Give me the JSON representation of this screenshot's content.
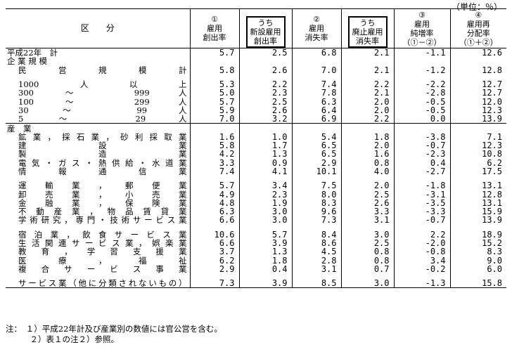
{
  "unit": "（単位：％）",
  "header": {
    "col0": "区　　分",
    "col1": [
      "①",
      "雇用",
      "創出率"
    ],
    "col2": [
      "うち",
      "新設雇用",
      "創出率"
    ],
    "col3": [
      "②",
      "雇用",
      "消失率"
    ],
    "col4": [
      "うち",
      "廃止雇用",
      "消失率"
    ],
    "col5": [
      "③",
      "雇用",
      "純増率",
      "（①－②）"
    ],
    "col6": [
      "④",
      "雇用再",
      "分配率",
      "（①＋②）"
    ]
  },
  "rows": [
    {
      "label": "平成22年　計",
      "v": [
        "5.7",
        "2.5",
        "6.8",
        "2.1",
        "-1.1",
        "12.6"
      ]
    },
    {
      "label": "企 業 規 模",
      "v": null
    },
    {
      "label": "民営規模計",
      "indent": true,
      "v": [
        "5.8",
        "2.6",
        "7.0",
        "2.1",
        "-1.2",
        "12.8"
      ]
    },
    {
      "blank": true
    },
    {
      "label": "1000人以上",
      "indent": true,
      "v": [
        "5.3",
        "2.2",
        "7.4",
        "2.2",
        "-2.2",
        "12.7"
      ]
    },
    {
      "label": "300 〜 999人",
      "indent": true,
      "v": [
        "5.0",
        "2.3",
        "7.8",
        "2.1",
        "-2.8",
        "12.7"
      ]
    },
    {
      "label": "100 〜 299人",
      "indent": true,
      "v": [
        "5.7",
        "2.5",
        "6.3",
        "2.0",
        "-0.5",
        "12.0"
      ]
    },
    {
      "label": "30 〜 99人",
      "indent": true,
      "v": [
        "5.9",
        "2.6",
        "6.4",
        "2.0",
        "-0.5",
        "12.3"
      ]
    },
    {
      "label": "5 〜 29人",
      "indent": true,
      "v": [
        "7.0",
        "3.2",
        "6.9",
        "2.2",
        "0.0",
        "13.9"
      ]
    },
    {
      "label": "産　業",
      "v": null,
      "sep": true
    },
    {
      "label": "鉱業，採石業，砂利採取業",
      "indent": true,
      "v": [
        "1.6",
        "1.0",
        "5.4",
        "1.8",
        "-3.8",
        "7.1"
      ]
    },
    {
      "label": "建設業",
      "indent": true,
      "v": [
        "5.8",
        "1.7",
        "6.5",
        "2.0",
        "-0.7",
        "12.3"
      ]
    },
    {
      "label": "製造業",
      "indent": true,
      "v": [
        "4.2",
        "1.3",
        "6.5",
        "1.6",
        "-2.3",
        "10.8"
      ]
    },
    {
      "label": "電気・ガス・熱供給・水道業",
      "indent": true,
      "v": [
        "3.3",
        "0.9",
        "2.9",
        "0.8",
        "0.4",
        "6.2"
      ]
    },
    {
      "label": "情報通信業",
      "indent": true,
      "v": [
        "7.4",
        "4.1",
        "10.1",
        "4.0",
        "-2.7",
        "17.5"
      ]
    },
    {
      "blank": true
    },
    {
      "label": "運輸業，郵便業",
      "indent": true,
      "v": [
        "5.7",
        "3.4",
        "7.5",
        "2.0",
        "-1.8",
        "13.1"
      ]
    },
    {
      "label": "卸売業，小売業",
      "indent": true,
      "v": [
        "4.9",
        "2.3",
        "8.0",
        "2.5",
        "-3.1",
        "12.8"
      ]
    },
    {
      "label": "金融業，保険業",
      "indent": true,
      "v": [
        "4.8",
        "1.9",
        "8.3",
        "2.6",
        "-3.5",
        "13.1"
      ]
    },
    {
      "label": "不動産業，物品賃貸業",
      "indent": true,
      "v": [
        "6.3",
        "3.0",
        "9.6",
        "3.3",
        "-3.3",
        "15.9"
      ]
    },
    {
      "label": "学術研究，専門・技術サービス業",
      "indent": true,
      "v": [
        "6.6",
        "3.0",
        "7.3",
        "3.1",
        "-0.7",
        "13.9"
      ]
    },
    {
      "blank": true
    },
    {
      "label": "宿泊業，飲食サービス業",
      "indent": true,
      "v": [
        "10.6",
        "5.7",
        "8.4",
        "3.0",
        "2.2",
        "18.9"
      ]
    },
    {
      "label": "生活関連サービス業，娯楽業",
      "indent": true,
      "v": [
        "6.6",
        "3.9",
        "8.6",
        "2.5",
        "-2.0",
        "15.2"
      ]
    },
    {
      "label": "教育，学習支援業",
      "indent": true,
      "v": [
        "3.7",
        "1.3",
        "4.5",
        "0.8",
        "-0.8",
        "8.3"
      ]
    },
    {
      "label": "医療，福祉",
      "indent": true,
      "v": [
        "6.2",
        "1.8",
        "2.8",
        "0.8",
        "3.4",
        "9.0"
      ]
    },
    {
      "label": "複合サービス事業",
      "indent": true,
      "v": [
        "2.9",
        "0.4",
        "3.1",
        "0.7",
        "-0.2",
        "6.0"
      ]
    },
    {
      "blank": true
    },
    {
      "label": "サービス業（他に分類されないもの）",
      "indent": true,
      "v": [
        "7.3",
        "3.9",
        "8.5",
        "3.0",
        "-1.3",
        "15.8"
      ]
    }
  ],
  "notes": [
    "注：　１）平成22年計及び産業別の数値には官公営を含む。",
    "　　　２）表１の注２）参照。"
  ]
}
